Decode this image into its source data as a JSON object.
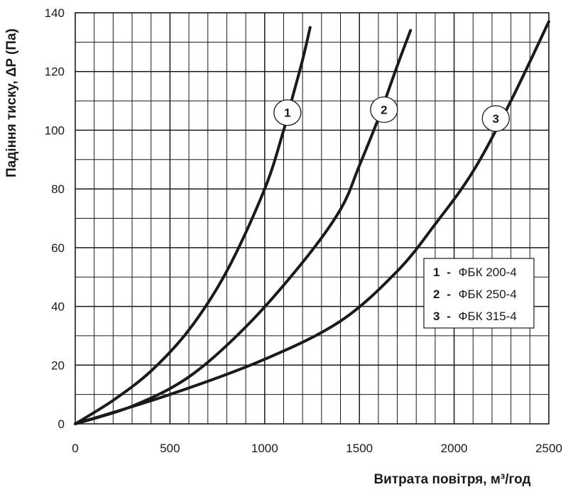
{
  "chart_data": {
    "type": "line",
    "xlabel": "Витрата повітря, м³/год",
    "ylabel": "Падіння тиску, ΔP (Па)",
    "xlim": [
      0,
      2500
    ],
    "ylim": [
      0,
      140
    ],
    "x_ticks": [
      0,
      500,
      1000,
      1500,
      2000,
      2500
    ],
    "y_ticks": [
      0,
      20,
      40,
      60,
      80,
      100,
      120,
      140
    ],
    "grid": true,
    "legend_position": "right",
    "series": [
      {
        "id": "1",
        "name": "ФБК 200-4",
        "callout": "1",
        "callout_at": [
          1120,
          106
        ],
        "x": [
          0,
          200,
          400,
          600,
          800,
          1000,
          1100,
          1150,
          1200,
          1240
        ],
        "y": [
          0,
          8,
          18,
          32,
          52,
          80,
          100,
          112,
          124,
          135
        ]
      },
      {
        "id": "2",
        "name": "ФБК 250-4",
        "callout": "2",
        "callout_at": [
          1630,
          107
        ],
        "x": [
          0,
          300,
          600,
          900,
          1200,
          1400,
          1500,
          1600,
          1700,
          1770
        ],
        "y": [
          0,
          6,
          16,
          33,
          55,
          73,
          88,
          104,
          122,
          134
        ]
      },
      {
        "id": "3",
        "name": "ФБК 315-4",
        "callout": "3",
        "callout_at": [
          2220,
          104
        ],
        "x": [
          0,
          500,
          1000,
          1400,
          1700,
          1900,
          2100,
          2300,
          2500
        ],
        "y": [
          0,
          10,
          22,
          35,
          52,
          68,
          86,
          110,
          137
        ]
      }
    ],
    "legend": [
      {
        "num": "1",
        "sep": "-",
        "label": "ФБК 200-4"
      },
      {
        "num": "2",
        "sep": "-",
        "label": "ФБК 250-4"
      },
      {
        "num": "3",
        "sep": "-",
        "label": "ФБК 315-4"
      }
    ],
    "colors": {
      "line": "#1a1a1a",
      "grid": "#1a1a1a",
      "background": "#ffffff"
    }
  }
}
